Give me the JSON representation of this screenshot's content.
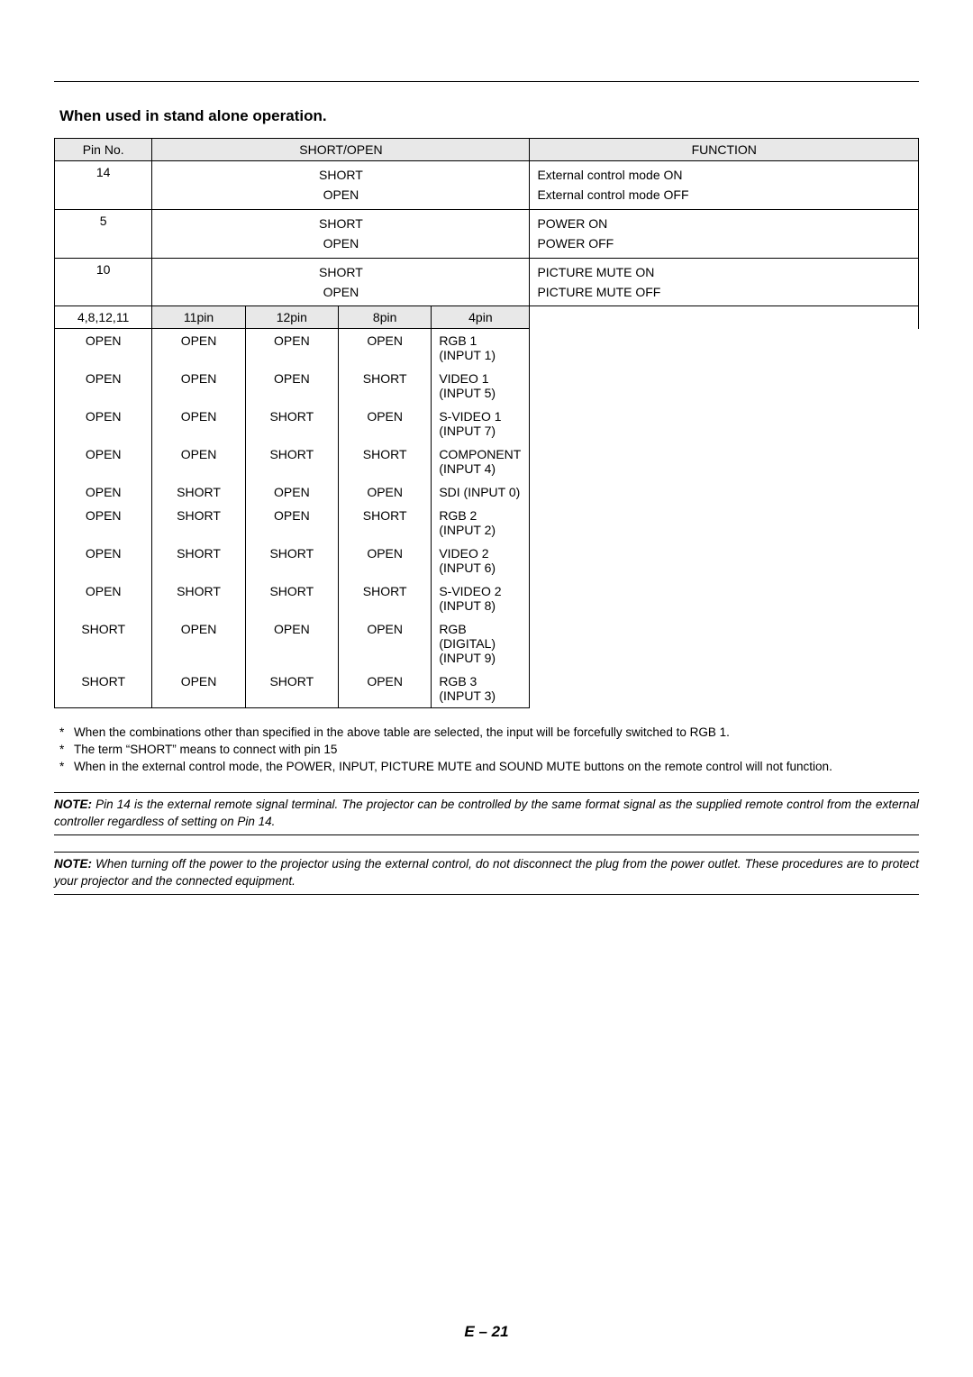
{
  "section_title": "When used in stand alone operation.",
  "header": {
    "pin_no": "Pin No.",
    "short_open": "SHORT/OPEN",
    "function": "FUNCTION"
  },
  "simple_rows": [
    {
      "pin": "14",
      "so": [
        "SHORT",
        "OPEN"
      ],
      "func": [
        "External control mode ON",
        "External control mode OFF"
      ]
    },
    {
      "pin": "5",
      "so": [
        "SHORT",
        "OPEN"
      ],
      "func": [
        "POWER ON",
        "POWER OFF"
      ]
    },
    {
      "pin": "10",
      "so": [
        "SHORT",
        "OPEN"
      ],
      "func": [
        "PICTURE MUTE ON",
        "PICTURE MUTE OFF"
      ]
    }
  ],
  "combo_header": {
    "pin": "4,8,12,11",
    "c1": "11pin",
    "c2": "12pin",
    "c3": "8pin",
    "c4": "4pin"
  },
  "combo_rows": [
    {
      "c": [
        "OPEN",
        "OPEN",
        "OPEN",
        "OPEN"
      ],
      "func": "RGB 1 (INPUT 1)"
    },
    {
      "c": [
        "OPEN",
        "OPEN",
        "OPEN",
        "SHORT"
      ],
      "func": "VIDEO 1 (INPUT 5)"
    },
    {
      "c": [
        "OPEN",
        "OPEN",
        "SHORT",
        "OPEN"
      ],
      "func": "S-VIDEO 1 (INPUT 7)"
    },
    {
      "c": [
        "OPEN",
        "OPEN",
        "SHORT",
        "SHORT"
      ],
      "func": "COMPONENT (INPUT 4)"
    },
    {
      "c": [
        "OPEN",
        "SHORT",
        "OPEN",
        "OPEN"
      ],
      "func": "SDI (INPUT 0)"
    },
    {
      "c": [
        "OPEN",
        "SHORT",
        "OPEN",
        "SHORT"
      ],
      "func": "RGB 2 (INPUT 2)"
    },
    {
      "c": [
        "OPEN",
        "SHORT",
        "SHORT",
        "OPEN"
      ],
      "func": "VIDEO 2 (INPUT 6)"
    },
    {
      "c": [
        "OPEN",
        "SHORT",
        "SHORT",
        "SHORT"
      ],
      "func": "S-VIDEO 2 (INPUT 8)"
    },
    {
      "c": [
        "SHORT",
        "OPEN",
        "OPEN",
        "OPEN"
      ],
      "func": "RGB (DIGITAL) (INPUT 9)"
    },
    {
      "c": [
        "SHORT",
        "OPEN",
        "SHORT",
        "OPEN"
      ],
      "func": "RGB 3 (INPUT 3)"
    }
  ],
  "footnotes": [
    "When the combinations other than specified in the above table are selected, the input will be forcefully switched to RGB 1.",
    "The term “SHORT” means to connect with pin 15",
    "When in the external control mode, the POWER, INPUT, PICTURE MUTE and SOUND MUTE buttons on the remote control will not function."
  ],
  "note1_label": "NOTE:",
  "note1_text": "Pin 14 is the external remote signal terminal. The projector can be controlled by the same format signal as the supplied remote control from the external controller regardless of setting on Pin 14.",
  "note2_label": "NOTE:",
  "note2_text": "When turning off the power to the projector using the external control, do not disconnect the plug from the power outlet. These procedures are to protect your projector and the connected equipment.",
  "page_number": "E – 21"
}
